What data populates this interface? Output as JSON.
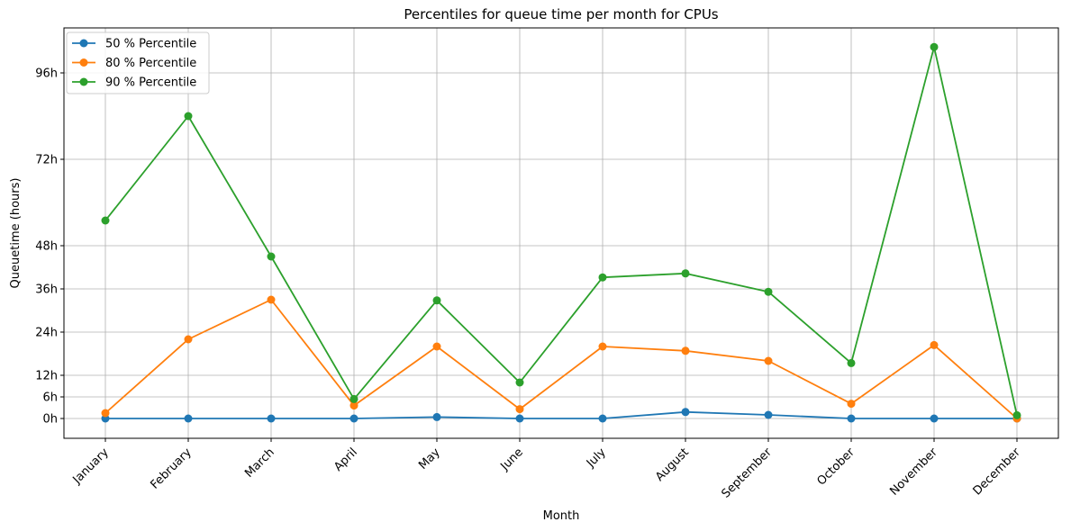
{
  "chart_data": {
    "type": "line",
    "title": "Percentiles for queue time per month for CPUs",
    "xlabel": "Month",
    "ylabel": "Queuetime (hours)",
    "categories": [
      "January",
      "February",
      "March",
      "April",
      "May",
      "June",
      "July",
      "August",
      "September",
      "October",
      "November",
      "December"
    ],
    "yticks": [
      0,
      6,
      12,
      24,
      36,
      48,
      72,
      96
    ],
    "ytick_labels": [
      "0h",
      "6h",
      "12h",
      "24h",
      "36h",
      "48h",
      "72h",
      "96h"
    ],
    "ylim": [
      -5.5,
      108.5
    ],
    "grid": true,
    "legend_position": "top-left",
    "series": [
      {
        "name": "50 % Percentile",
        "color": "#1f77b4",
        "values": [
          0,
          0,
          0,
          0,
          0.4,
          0,
          0,
          1.8,
          1.0,
          0,
          0,
          0
        ]
      },
      {
        "name": "80 % Percentile",
        "color": "#ff7f0e",
        "values": [
          1.5,
          22,
          33,
          3.6,
          20,
          2.6,
          20,
          18.8,
          16,
          4.1,
          20.4,
          0
        ]
      },
      {
        "name": "90 % Percentile",
        "color": "#2ca02c",
        "values": [
          55,
          84,
          45,
          5.4,
          32.8,
          10,
          39.2,
          40.3,
          35.2,
          15.4,
          103.2,
          0.9
        ]
      }
    ]
  }
}
